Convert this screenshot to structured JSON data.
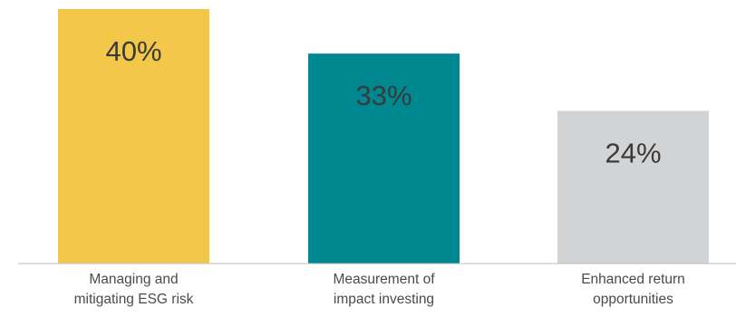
{
  "chart_data": {
    "type": "bar",
    "categories": [
      [
        "Managing and",
        "mitigating ESG risk"
      ],
      [
        "Measurement of",
        "impact investing"
      ],
      [
        "Enhanced return",
        "opportunities"
      ]
    ],
    "values": [
      40,
      33,
      24
    ],
    "value_labels": [
      "40%",
      "33%",
      "24%"
    ],
    "colors": [
      "#f3c84a",
      "#008891",
      "#d2d3d5"
    ],
    "axis_color": "#bdbdbd",
    "title": "",
    "xlabel": "",
    "ylabel": "",
    "ylim": [
      0,
      40
    ],
    "grid": false,
    "legend": "none"
  }
}
